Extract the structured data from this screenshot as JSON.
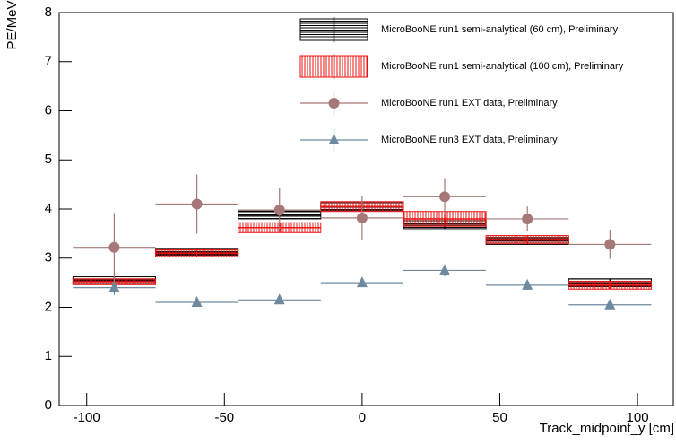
{
  "chart_data": {
    "type": "errorbar",
    "ylabel": "PE/MeV",
    "xlabel": "Track_midpoint_y [cm]",
    "xlim": [
      -110,
      113
    ],
    "ylim": [
      0,
      8
    ],
    "xticks": [
      -100,
      -50,
      0,
      50,
      100
    ],
    "yticks": [
      0,
      1,
      2,
      3,
      4,
      5,
      6,
      7,
      8
    ],
    "x": [
      -90,
      -60,
      -30,
      0,
      30,
      60,
      90
    ],
    "xerr": 15,
    "series": [
      {
        "name": "MicroBooNE run1 semi-analytical (60 cm), Preliminary",
        "color": "#000000",
        "style": "hbox",
        "values": [
          2.55,
          3.13,
          3.88,
          4.05,
          3.7,
          3.35,
          2.5
        ],
        "errors": [
          0.07,
          0.07,
          0.08,
          0.08,
          0.1,
          0.07,
          0.08
        ]
      },
      {
        "name": "MicroBooNE run1 semi-analytical (100 cm), Preliminary",
        "color": "#ee1111",
        "style": "vbox",
        "values": [
          2.52,
          3.1,
          3.62,
          4.05,
          3.8,
          3.38,
          2.45
        ],
        "errors": [
          0.06,
          0.07,
          0.1,
          0.1,
          0.15,
          0.08,
          0.08
        ]
      },
      {
        "name": "MicroBooNE run1 EXT data, Preliminary",
        "color": "#a67878",
        "style": "circle",
        "values": [
          3.22,
          4.1,
          3.98,
          3.82,
          4.25,
          3.8,
          3.28
        ],
        "errors": [
          0.7,
          0.6,
          0.45,
          0.45,
          0.38,
          0.25,
          0.3
        ]
      },
      {
        "name": "MicroBooNE run3 EXT data, Preliminary",
        "color": "#6f8aa0",
        "style": "triangle",
        "values": [
          2.4,
          2.1,
          2.15,
          2.5,
          2.75,
          2.45,
          2.05
        ],
        "errors": [
          0.15,
          0.08,
          0.08,
          0.08,
          0.12,
          0.06,
          0.08
        ]
      }
    ]
  }
}
